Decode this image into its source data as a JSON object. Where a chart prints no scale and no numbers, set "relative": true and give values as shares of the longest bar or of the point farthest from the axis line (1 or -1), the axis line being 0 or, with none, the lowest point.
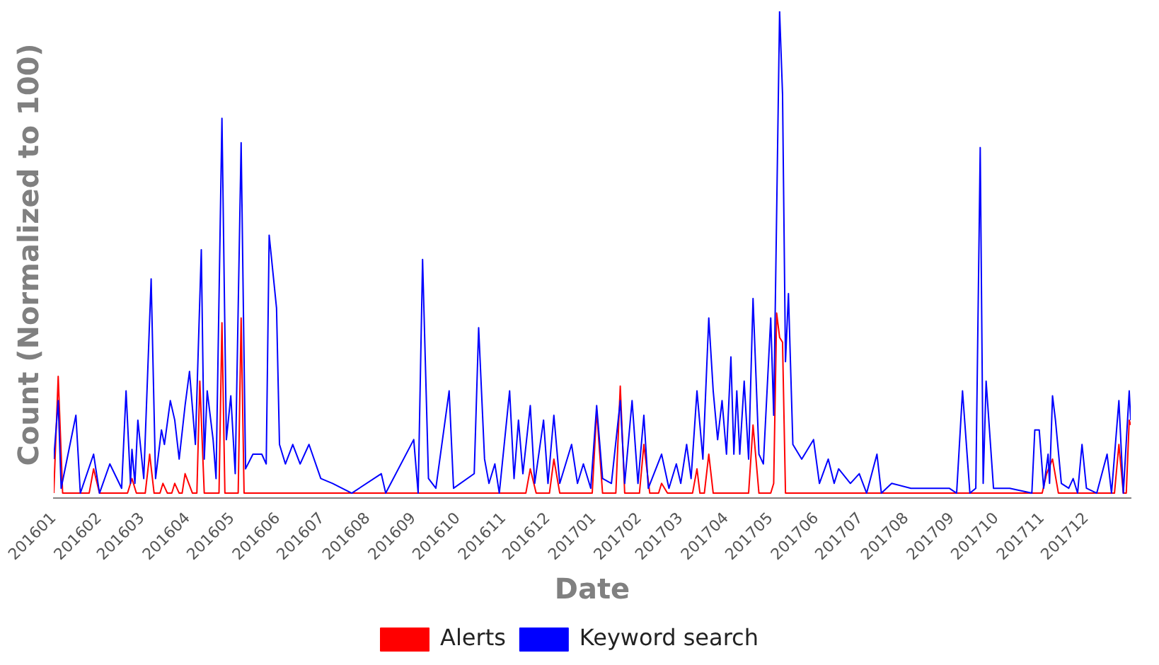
{
  "chart_data": {
    "type": "line",
    "relative": true,
    "xlabel": "Date",
    "ylabel": "Count (Normalized to 100)",
    "legend": "bottom",
    "grid": false,
    "tick_labels": "x",
    "marker": "none",
    "line_style": "solid",
    "xlim": [
      "2016-01-01",
      "2017-12-31"
    ],
    "xticks": [
      {
        "value": "2016-01-01",
        "label": "201601"
      },
      {
        "value": "2016-02-01",
        "label": "201602"
      },
      {
        "value": "2016-03-01",
        "label": "201603"
      },
      {
        "value": "2016-04-01",
        "label": "201604"
      },
      {
        "value": "2016-05-01",
        "label": "201605"
      },
      {
        "value": "2016-06-01",
        "label": "201606"
      },
      {
        "value": "2016-07-01",
        "label": "201607"
      },
      {
        "value": "2016-08-01",
        "label": "201608"
      },
      {
        "value": "2016-09-01",
        "label": "201609"
      },
      {
        "value": "2016-10-01",
        "label": "201610"
      },
      {
        "value": "2016-11-01",
        "label": "201611"
      },
      {
        "value": "2016-12-01",
        "label": "201612"
      },
      {
        "value": "2017-01-01",
        "label": "201701"
      },
      {
        "value": "2017-02-01",
        "label": "201702"
      },
      {
        "value": "2017-03-01",
        "label": "201703"
      },
      {
        "value": "2017-04-01",
        "label": "201704"
      },
      {
        "value": "2017-05-01",
        "label": "201705"
      },
      {
        "value": "2017-06-01",
        "label": "201706"
      },
      {
        "value": "2017-07-01",
        "label": "201707"
      },
      {
        "value": "2017-08-01",
        "label": "201708"
      },
      {
        "value": "2017-09-01",
        "label": "201709"
      },
      {
        "value": "2017-10-01",
        "label": "201710"
      },
      {
        "value": "2017-11-01",
        "label": "201711"
      },
      {
        "value": "2017-12-01",
        "label": "201712"
      }
    ],
    "series": [
      {
        "name": "Alerts",
        "color": "#ff0000",
        "x": [
          "2016-01-01",
          "2016-01-04",
          "2016-01-07",
          "2016-01-25",
          "2016-01-28",
          "2016-02-01",
          "2016-02-20",
          "2016-02-23",
          "2016-02-26",
          "2016-03-03",
          "2016-03-06",
          "2016-03-09",
          "2016-03-13",
          "2016-03-15",
          "2016-03-18",
          "2016-03-21",
          "2016-03-23",
          "2016-03-26",
          "2016-03-28",
          "2016-03-30",
          "2016-04-04",
          "2016-04-07",
          "2016-04-09",
          "2016-04-12",
          "2016-04-22",
          "2016-04-24",
          "2016-04-26",
          "2016-05-05",
          "2016-05-07",
          "2016-05-09",
          "2016-11-16",
          "2016-11-19",
          "2016-11-23",
          "2016-12-02",
          "2016-12-05",
          "2016-12-09",
          "2016-12-31",
          "2017-01-03",
          "2017-01-07",
          "2017-01-16",
          "2017-01-19",
          "2017-01-22",
          "2017-02-01",
          "2017-02-04",
          "2017-02-08",
          "2017-02-14",
          "2017-02-16",
          "2017-02-20",
          "2017-03-09",
          "2017-03-12",
          "2017-03-14",
          "2017-03-17",
          "2017-03-20",
          "2017-03-23",
          "2017-04-16",
          "2017-04-19",
          "2017-04-23",
          "2017-05-01",
          "2017-05-03",
          "2017-05-05",
          "2017-05-07",
          "2017-05-09",
          "2017-05-11",
          "2017-11-01",
          "2017-11-04",
          "2017-11-08",
          "2017-11-12",
          "2017-12-20",
          "2017-12-23",
          "2017-12-26",
          "2017-12-28",
          "2017-12-30",
          "2017-12-31"
        ],
        "values": [
          0.01,
          0.25,
          0.01,
          0.01,
          0.06,
          0.01,
          0.01,
          0.04,
          0.01,
          0.01,
          0.09,
          0.01,
          0.01,
          0.03,
          0.01,
          0.01,
          0.03,
          0.01,
          0.01,
          0.05,
          0.01,
          0.01,
          0.24,
          0.01,
          0.01,
          0.36,
          0.01,
          0.01,
          0.37,
          0.01,
          0.01,
          0.06,
          0.01,
          0.01,
          0.08,
          0.01,
          0.01,
          0.18,
          0.01,
          0.01,
          0.23,
          0.01,
          0.01,
          0.11,
          0.01,
          0.01,
          0.03,
          0.01,
          0.01,
          0.06,
          0.01,
          0.01,
          0.09,
          0.01,
          0.01,
          0.15,
          0.01,
          0.01,
          0.03,
          0.38,
          0.33,
          0.32,
          0.01,
          0.01,
          0.05,
          0.08,
          0.01,
          0.01,
          0.11,
          0.01,
          0.01,
          0.16,
          0.15
        ]
      },
      {
        "name": "Keyword search",
        "color": "#0000ff",
        "x": [
          "2016-01-01",
          "2016-01-04",
          "2016-01-06",
          "2016-01-16",
          "2016-01-19",
          "2016-01-28",
          "2016-02-01",
          "2016-02-08",
          "2016-02-16",
          "2016-02-19",
          "2016-02-22",
          "2016-02-23",
          "2016-02-25",
          "2016-02-27",
          "2016-03-02",
          "2016-03-07",
          "2016-03-10",
          "2016-03-14",
          "2016-03-16",
          "2016-03-20",
          "2016-03-23",
          "2016-03-26",
          "2016-03-30",
          "2016-04-02",
          "2016-04-06",
          "2016-04-10",
          "2016-04-12",
          "2016-04-14",
          "2016-04-18",
          "2016-04-20",
          "2016-04-24",
          "2016-04-27",
          "2016-04-30",
          "2016-05-03",
          "2016-05-07",
          "2016-05-10",
          "2016-05-15",
          "2016-05-21",
          "2016-05-24",
          "2016-05-26",
          "2016-05-31",
          "2016-06-02",
          "2016-06-06",
          "2016-06-11",
          "2016-06-16",
          "2016-06-22",
          "2016-06-30",
          "2016-07-08",
          "2016-07-21",
          "2016-08-10",
          "2016-08-13",
          "2016-09-01",
          "2016-09-04",
          "2016-09-07",
          "2016-09-11",
          "2016-09-16",
          "2016-09-25",
          "2016-09-28",
          "2016-10-12",
          "2016-10-15",
          "2016-10-19",
          "2016-10-22",
          "2016-10-26",
          "2016-10-29",
          "2016-11-05",
          "2016-11-08",
          "2016-11-11",
          "2016-11-14",
          "2016-11-19",
          "2016-11-22",
          "2016-11-28",
          "2016-12-01",
          "2016-12-05",
          "2016-12-09",
          "2016-12-17",
          "2016-12-21",
          "2016-12-25",
          "2016-12-30",
          "2017-01-03",
          "2017-01-07",
          "2017-01-13",
          "2017-01-19",
          "2017-01-22",
          "2017-01-27",
          "2017-01-31",
          "2017-02-04",
          "2017-02-07",
          "2017-02-16",
          "2017-02-21",
          "2017-02-26",
          "2017-03-01",
          "2017-03-05",
          "2017-03-08",
          "2017-03-12",
          "2017-03-16",
          "2017-03-20",
          "2017-03-23",
          "2017-03-26",
          "2017-03-29",
          "2017-04-01",
          "2017-04-04",
          "2017-04-06",
          "2017-04-08",
          "2017-04-10",
          "2017-04-13",
          "2017-04-16",
          "2017-04-19",
          "2017-04-23",
          "2017-04-26",
          "2017-05-01",
          "2017-05-03",
          "2017-05-07",
          "2017-05-09",
          "2017-05-11",
          "2017-05-13",
          "2017-05-16",
          "2017-05-22",
          "2017-05-30",
          "2017-06-03",
          "2017-06-09",
          "2017-06-13",
          "2017-06-16",
          "2017-06-24",
          "2017-06-30",
          "2017-07-05",
          "2017-07-12",
          "2017-07-15",
          "2017-07-22",
          "2017-08-04",
          "2017-08-30",
          "2017-09-04",
          "2017-09-08",
          "2017-09-13",
          "2017-09-17",
          "2017-09-20",
          "2017-09-22",
          "2017-09-24",
          "2017-09-29",
          "2017-10-10",
          "2017-10-25",
          "2017-10-27",
          "2017-10-30",
          "2017-11-02",
          "2017-11-05",
          "2017-11-06",
          "2017-11-08",
          "2017-11-10",
          "2017-11-14",
          "2017-11-19",
          "2017-11-22",
          "2017-11-25",
          "2017-11-28",
          "2017-12-01",
          "2017-12-08",
          "2017-12-15",
          "2017-12-18",
          "2017-12-23",
          "2017-12-26",
          "2017-12-30",
          "2017-12-31"
        ],
        "values": [
          0.08,
          0.2,
          0.02,
          0.17,
          0.01,
          0.09,
          0.01,
          0.07,
          0.02,
          0.22,
          0.03,
          0.1,
          0.03,
          0.16,
          0.04,
          0.45,
          0.04,
          0.14,
          0.11,
          0.2,
          0.16,
          0.08,
          0.19,
          0.26,
          0.11,
          0.51,
          0.08,
          0.22,
          0.12,
          0.04,
          0.78,
          0.12,
          0.21,
          0.05,
          0.73,
          0.06,
          0.09,
          0.09,
          0.07,
          0.54,
          0.39,
          0.11,
          0.07,
          0.11,
          0.07,
          0.11,
          0.04,
          0.03,
          0.01,
          0.05,
          0.01,
          0.12,
          0.01,
          0.49,
          0.04,
          0.02,
          0.22,
          0.02,
          0.05,
          0.35,
          0.08,
          0.03,
          0.07,
          0.01,
          0.22,
          0.04,
          0.16,
          0.05,
          0.19,
          0.03,
          0.16,
          0.03,
          0.17,
          0.03,
          0.11,
          0.03,
          0.07,
          0.02,
          0.19,
          0.04,
          0.03,
          0.2,
          0.03,
          0.2,
          0.03,
          0.17,
          0.02,
          0.09,
          0.02,
          0.07,
          0.03,
          0.11,
          0.04,
          0.22,
          0.08,
          0.37,
          0.22,
          0.12,
          0.2,
          0.09,
          0.29,
          0.09,
          0.22,
          0.09,
          0.24,
          0.08,
          0.41,
          0.09,
          0.07,
          0.37,
          0.17,
          1,
          0.83,
          0.28,
          0.42,
          0.11,
          0.08,
          0.12,
          0.03,
          0.08,
          0.03,
          0.06,
          0.03,
          0.05,
          0.01,
          0.09,
          0.01,
          0.03,
          0.02,
          0.02,
          0.01,
          0.22,
          0.01,
          0.02,
          0.72,
          0.03,
          0.24,
          0.02,
          0.02,
          0.01,
          0.14,
          0.14,
          0.02,
          0.09,
          0.03,
          0.21,
          0.16,
          0.03,
          0.02,
          0.04,
          0.01,
          0.11,
          0.02,
          0.01,
          0.09,
          0.01,
          0.2,
          0.01,
          0.22,
          0.16
        ]
      }
    ]
  }
}
